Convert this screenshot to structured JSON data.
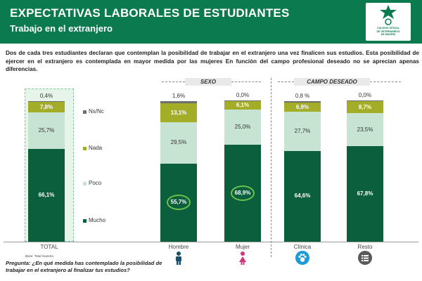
{
  "header": {
    "title": "EXPECTATIVAS LABORALES DE ESTUDIANTES",
    "subtitle": "Trabajo en el extranjero",
    "logo_text": "COLEGIO OFICIAL\nDE VETERINARIOS\nDE MADRID"
  },
  "intro": "Dos de cada tres estudiantes declaran que contemplan la posibilidad de trabajar en el extranjero una vez finalicen sus estudios. Esta posibilidad de ejercer en el extranjero es contemplada en mayor medida por las mujeres  En función del campo profesional deseado  no se aprecian apenas diferencias.",
  "sections": {
    "sexo": "SEXO",
    "campo": "CAMPO DESEADO"
  },
  "note": "Base: Total muestra",
  "question": "Pregunta: ¿En qué medida has contemplado la posibilidad de trabajar en el extranjero al finalizar tus estudios?",
  "icons": {
    "hombre": "man-icon",
    "mujer": "woman-icon",
    "clinica": "paw-icon",
    "resto": "list-icon"
  },
  "colors": {
    "header": "#0b7a4e",
    "mucho": "#0b5f3d",
    "poco": "#c7e3d2",
    "nada": "#a3ad28",
    "nsnc": "#6e6e6e",
    "highlight": "#6cc24a",
    "icon_hombre": "#16506d",
    "icon_mujer": "#d6337c",
    "icon_clinica": "#1e9bd7",
    "icon_resto": "#5a5a5a"
  },
  "chart_data": {
    "type": "bar",
    "stacked": true,
    "normalized": true,
    "categories": [
      "TOTAL",
      "Hombre",
      "Mujer",
      "Clínica",
      "Resto"
    ],
    "series": [
      {
        "name": "Mucho",
        "values": [
          66.1,
          55.7,
          68.9,
          64.6,
          67.8
        ]
      },
      {
        "name": "Poco",
        "values": [
          25.7,
          29.5,
          25.0,
          27.7,
          23.5
        ]
      },
      {
        "name": "Nada",
        "values": [
          7.8,
          13.1,
          6.1,
          6.9,
          8.7
        ]
      },
      {
        "name": "Ns/Nc",
        "values": [
          0.4,
          1.6,
          0.0,
          0.8,
          0.0
        ]
      }
    ],
    "labels": {
      "Mucho": [
        "66,1%",
        "55,7%",
        "68,9%",
        "64,6%",
        "67,8%"
      ],
      "Poco": [
        "25,7%",
        "29,5%",
        "25,0%",
        "27,7%",
        "23,5%"
      ],
      "Nada": [
        "7,8%",
        "13,1%",
        "6,1%",
        "6,9%",
        "8,7%"
      ],
      "Ns/Nc": [
        "0,4%",
        "1,6%",
        "0,0%",
        "0,8 %",
        "0,0%"
      ]
    },
    "highlighted": [
      "55,7%",
      "68,9%"
    ],
    "legend": [
      "Ns/Nc",
      "Nada",
      "Poco",
      "Mucho"
    ],
    "ylim": [
      0,
      100
    ],
    "title": "",
    "xlabel": "",
    "ylabel": ""
  }
}
